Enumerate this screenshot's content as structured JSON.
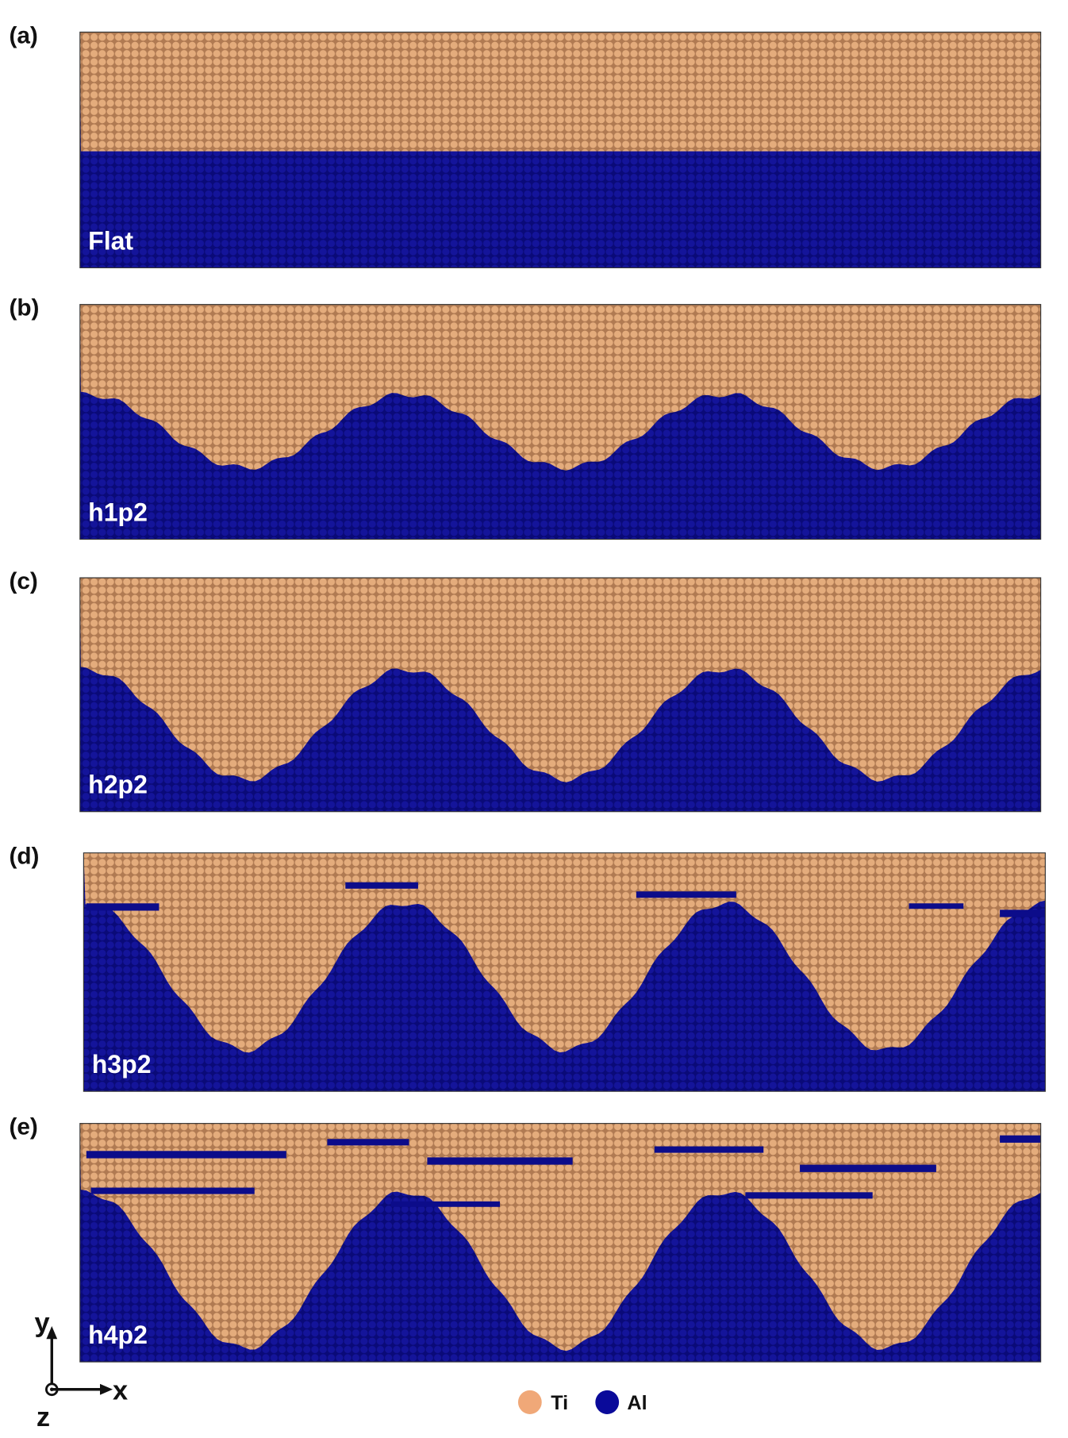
{
  "panels": [
    {
      "label": "(a)",
      "name": "Flat"
    },
    {
      "label": "(b)",
      "name": "h1p2"
    },
    {
      "label": "(c)",
      "name": "h2p2"
    },
    {
      "label": "(d)",
      "name": "h3p2"
    },
    {
      "label": "(e)",
      "name": "h4p2"
    }
  ],
  "legend": [
    {
      "label": "Ti"
    },
    {
      "label": "Al"
    }
  ],
  "axes": {
    "y": "y",
    "x": "x",
    "z": "z"
  }
}
